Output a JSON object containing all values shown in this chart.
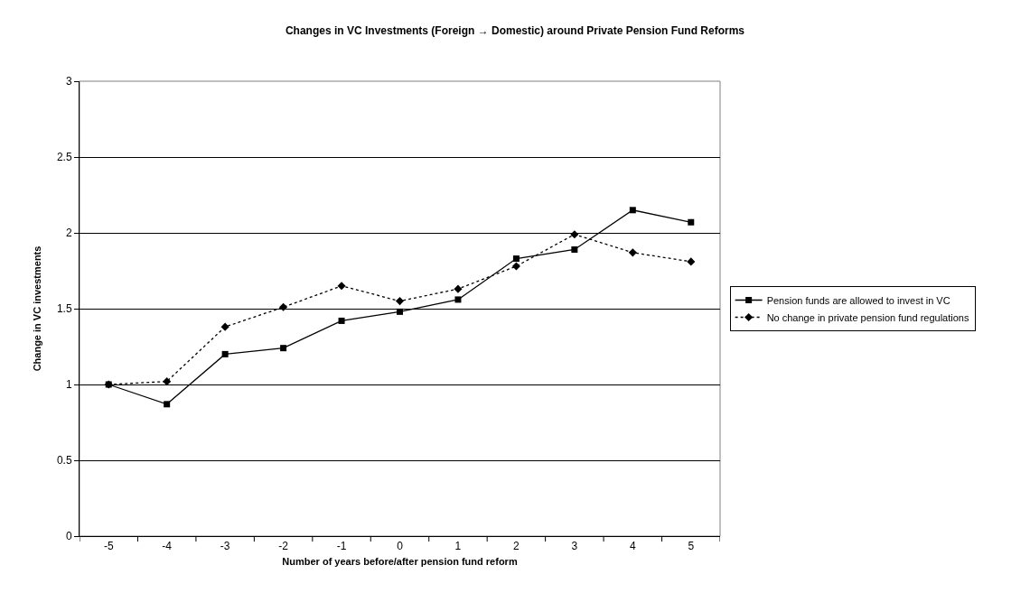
{
  "chart_data": {
    "type": "line",
    "title": "Changes in VC Investments (Foreign → Domestic) around Private Pension Fund Reforms",
    "xlabel": "Number of years before/after pension fund reform",
    "ylabel": "Change in VC investments",
    "categories": [
      "-5",
      "-4",
      "-3",
      "-2",
      "-1",
      "0",
      "1",
      "2",
      "3",
      "4",
      "5"
    ],
    "series": [
      {
        "name": "Pension funds are allowed to invest in VC",
        "color": "#000000",
        "marker": "square",
        "line_style": "solid",
        "values": [
          1.0,
          0.87,
          1.2,
          1.24,
          1.42,
          1.48,
          1.56,
          1.83,
          1.89,
          2.15,
          2.07
        ]
      },
      {
        "name": "No change in private pension fund regulations",
        "color": "#000000",
        "marker": "diamond",
        "line_style": "dotted",
        "values": [
          1.0,
          1.02,
          1.38,
          1.51,
          1.65,
          1.55,
          1.63,
          1.78,
          1.99,
          1.87,
          1.81
        ]
      }
    ],
    "ylim": [
      0,
      3
    ],
    "yticks": [
      0,
      0.5,
      1,
      1.5,
      2,
      2.5,
      3
    ],
    "grid": "y",
    "legend": "right"
  }
}
